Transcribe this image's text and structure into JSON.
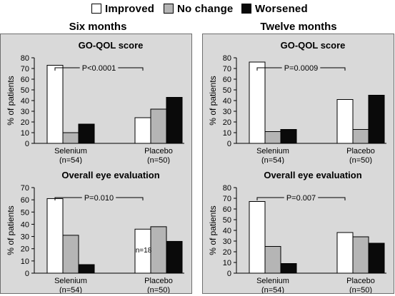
{
  "legend": {
    "items": [
      {
        "label": "Improved",
        "color": "#ffffff"
      },
      {
        "label": "No change",
        "color": "#b5b5b5"
      },
      {
        "label": "Worsened",
        "color": "#0a0a0a"
      }
    ]
  },
  "sections": [
    {
      "title": "Six months"
    },
    {
      "title": "Twelve months"
    }
  ],
  "chart_data": [
    {
      "type": "bar",
      "section": "Six months",
      "title": "GO-QOL score",
      "ylabel": "% of patients",
      "ylim": [
        0,
        80
      ],
      "yticks": [
        0,
        10,
        20,
        30,
        40,
        50,
        60,
        70,
        80
      ],
      "categories": [
        "Selenium",
        "Placebo"
      ],
      "category_notes": [
        "(n=54)",
        "(n=50)"
      ],
      "series": [
        {
          "name": "Improved",
          "values": [
            73,
            24
          ]
        },
        {
          "name": "No change",
          "values": [
            10,
            32
          ]
        },
        {
          "name": "Worsened",
          "values": [
            18,
            43
          ]
        }
      ],
      "annotation": {
        "text": "P<0.0001"
      }
    },
    {
      "type": "bar",
      "section": "Six months",
      "title": "Overall eye evaluation",
      "ylabel": "% of patients",
      "ylim": [
        0,
        70
      ],
      "yticks": [
        0,
        10,
        20,
        30,
        40,
        50,
        60,
        70
      ],
      "categories": [
        "Selenium",
        "Placebo"
      ],
      "category_notes": [
        "(n=54)",
        "(n=50)"
      ],
      "series": [
        {
          "name": "Improved",
          "values": [
            61,
            36
          ]
        },
        {
          "name": "No change",
          "values": [
            31,
            38
          ]
        },
        {
          "name": "Worsened",
          "values": [
            7,
            26
          ]
        }
      ],
      "annotation": {
        "text": "P=0.010"
      },
      "bar_labels": [
        {
          "text": "n=18"
        }
      ]
    },
    {
      "type": "bar",
      "section": "Twelve months",
      "title": "GO-QOL score",
      "ylabel": "% of patients",
      "ylim": [
        0,
        80
      ],
      "yticks": [
        0,
        10,
        20,
        30,
        40,
        50,
        60,
        70,
        80
      ],
      "categories": [
        "Selenium",
        "Placebo"
      ],
      "category_notes": [
        "(n=54)",
        "(n=50)"
      ],
      "series": [
        {
          "name": "Improved",
          "values": [
            76,
            41
          ]
        },
        {
          "name": "No change",
          "values": [
            11,
            13
          ]
        },
        {
          "name": "Worsened",
          "values": [
            13,
            45
          ]
        }
      ],
      "annotation": {
        "text": "P=0.0009"
      }
    },
    {
      "type": "bar",
      "section": "Twelve months",
      "title": "Overall eye evaluation",
      "ylabel": "% of patients",
      "ylim": [
        0,
        80
      ],
      "yticks": [
        0,
        10,
        20,
        30,
        40,
        50,
        60,
        70,
        80
      ],
      "categories": [
        "Selenium",
        "Placebo"
      ],
      "category_notes": [
        "(n=54)",
        "(n=50)"
      ],
      "series": [
        {
          "name": "Improved",
          "values": [
            67,
            38
          ]
        },
        {
          "name": "No change",
          "values": [
            25,
            34
          ]
        },
        {
          "name": "Worsened",
          "values": [
            9,
            28
          ]
        }
      ],
      "annotation": {
        "text": "P=0.007"
      }
    }
  ]
}
